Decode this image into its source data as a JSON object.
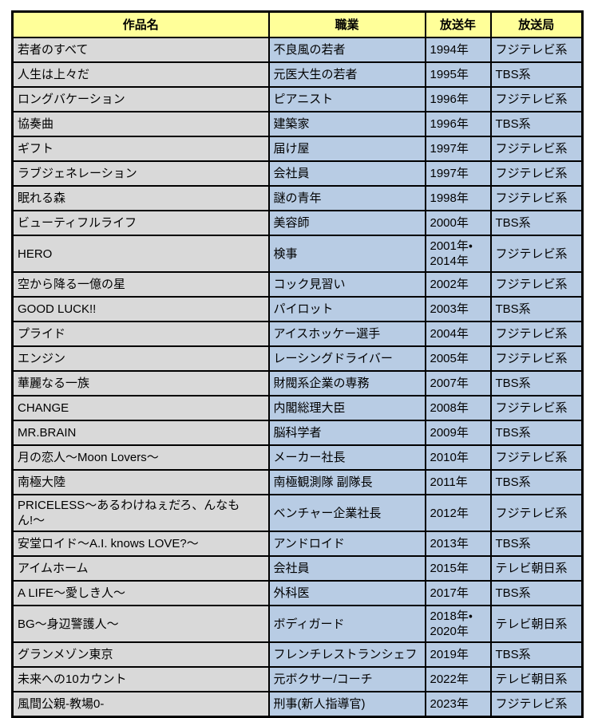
{
  "chart_data": {
    "type": "table",
    "columns": [
      "作品名",
      "職業",
      "放送年",
      "放送局"
    ],
    "rows": [
      [
        "若者のすべて",
        "不良風の若者",
        "1994年",
        "フジテレビ系"
      ],
      [
        "人生は上々だ",
        "元医大生の若者",
        "1995年",
        "TBS系"
      ],
      [
        "ロングバケーション",
        "ピアニスト",
        "1996年",
        "フジテレビ系"
      ],
      [
        "協奏曲",
        "建築家",
        "1996年",
        "TBS系"
      ],
      [
        "ギフト",
        "届け屋",
        "1997年",
        "フジテレビ系"
      ],
      [
        "ラブジェネレーション",
        "会社員",
        "1997年",
        "フジテレビ系"
      ],
      [
        "眠れる森",
        "謎の青年",
        "1998年",
        "フジテレビ系"
      ],
      [
        "ビューティフルライフ",
        "美容師",
        "2000年",
        "TBS系"
      ],
      [
        "HERO",
        "検事",
        "2001年・2014年",
        "フジテレビ系"
      ],
      [
        "空から降る一億の星",
        "コック見習い",
        "2002年",
        "フジテレビ系"
      ],
      [
        "GOOD LUCK!!",
        "パイロット",
        "2003年",
        "TBS系"
      ],
      [
        "プライド",
        "アイスホッケー選手",
        "2004年",
        "フジテレビ系"
      ],
      [
        "エンジン",
        "レーシングドライバー",
        "2005年",
        "フジテレビ系"
      ],
      [
        "華麗なる一族",
        "財閥系企業の専務",
        "2007年",
        "TBS系"
      ],
      [
        "CHANGE",
        "内閣総理大臣",
        "2008年",
        "フジテレビ系"
      ],
      [
        "MR.BRAIN",
        "脳科学者",
        "2009年",
        "TBS系"
      ],
      [
        "月の恋人〜Moon Lovers〜",
        "メーカー社長",
        "2010年",
        "フジテレビ系"
      ],
      [
        "南極大陸",
        "南極観測隊 副隊長",
        "2011年",
        "TBS系"
      ],
      [
        "PRICELESS〜あるわけねぇだろ、んなもん!〜",
        "ベンチャー企業社長",
        "2012年",
        "フジテレビ系"
      ],
      [
        "安堂ロイド〜A.I. knows LOVE?〜",
        "アンドロイド",
        "2013年",
        "TBS系"
      ],
      [
        "アイムホーム",
        "会社員",
        "2015年",
        "テレビ朝日系"
      ],
      [
        "A LIFE〜愛しき人〜",
        "外科医",
        "2017年",
        "TBS系"
      ],
      [
        "BG〜身辺警護人〜",
        "ボディガード",
        "2018年・2020年",
        "テレビ朝日系"
      ],
      [
        "グランメゾン東京",
        "フレンチレストランシェフ",
        "2019年",
        "TBS系"
      ],
      [
        "未来への10カウント",
        "元ボクサー/コーチ",
        "2022年",
        "テレビ朝日系"
      ],
      [
        "風間公親-教場0-",
        "刑事(新人指導官)",
        "2023年",
        "フジテレビ系"
      ]
    ],
    "title": "",
    "layout_hints": {
      "header_position": "top",
      "grid": "on",
      "tall_rows_due_to_two_years": [
        "HERO",
        "BG〜身辺警護人〜"
      ]
    }
  },
  "colors": {
    "header_bg": "#ffff99",
    "work_column_bg": "#d9d9d9",
    "data_cell_bg": "#b8cce4",
    "border": "#000000",
    "text": "#000000",
    "page_bg": "#ffffff"
  }
}
